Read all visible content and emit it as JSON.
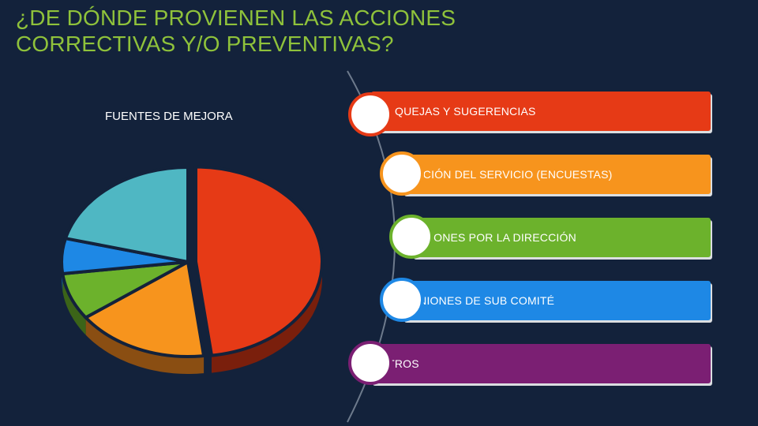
{
  "slide": {
    "title_line1": "¿DE DÓNDE PROVIENEN LAS ACCIONES",
    "title_line2": "CORRECTIVAS Y/O PREVENTIVAS?",
    "title_color": "#8fc23b",
    "background": "#13223b"
  },
  "chart_data": {
    "type": "pie",
    "title": "FUENTES DE MEJORA",
    "values": [
      48,
      17,
      8,
      6,
      21
    ],
    "colors": [
      "#e63a16",
      "#f7941d",
      "#6cb22c",
      "#1e88e5",
      "#4fb7c3"
    ],
    "side_colors": [
      "#7a1f0c",
      "#8a4e12",
      "#3b6418",
      "#0e4f86",
      "#2d7a83"
    ],
    "exploded": [
      0
    ]
  },
  "list": {
    "items": [
      {
        "label": "QUEJAS Y SUGERENCIAS",
        "color": "#e63a16"
      },
      {
        "label": "MEDICIÓN DEL SERVICIO (ENCUESTAS)",
        "color": "#f7941d"
      },
      {
        "label": "REVISIONES POR LA DIRECCIÓN",
        "color": "#6cb22c"
      },
      {
        "label": "REUNIONES DE SUB COMITÉ",
        "color": "#1e88e5"
      },
      {
        "label": "OTROS",
        "color": "#7b1f73"
      }
    ]
  }
}
